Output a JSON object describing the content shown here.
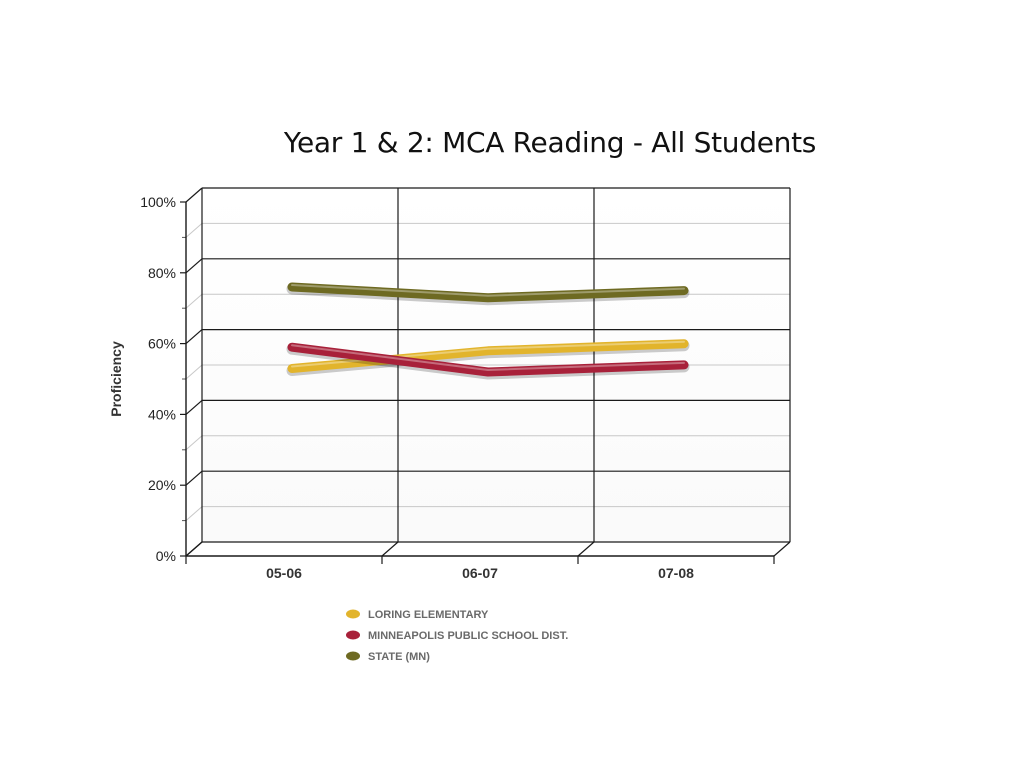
{
  "slide": {
    "title": "Year 1 & 2: MCA Reading - All Students"
  },
  "chart_data": {
    "type": "line",
    "title": "Year 1 & 2: MCA Reading - All Students",
    "xlabel": "",
    "ylabel": "Proficiency",
    "categories": [
      "05-06",
      "06-07",
      "07-08"
    ],
    "ylim": [
      0,
      100
    ],
    "y_ticks": [
      "0%",
      "20%",
      "40%",
      "60%",
      "80%",
      "100%"
    ],
    "grid": true,
    "legend_position": "bottom",
    "series": [
      {
        "name": "LORING ELEMENTARY",
        "values": [
          51,
          56,
          58
        ],
        "color": "#E2B42C"
      },
      {
        "name": "MINNEAPOLIS PUBLIC SCHOOL DIST.",
        "values": [
          57,
          50,
          52
        ],
        "color": "#A8213A"
      },
      {
        "name": "STATE (MN)",
        "values": [
          74,
          71,
          73
        ],
        "color": "#6E6A22"
      }
    ]
  }
}
